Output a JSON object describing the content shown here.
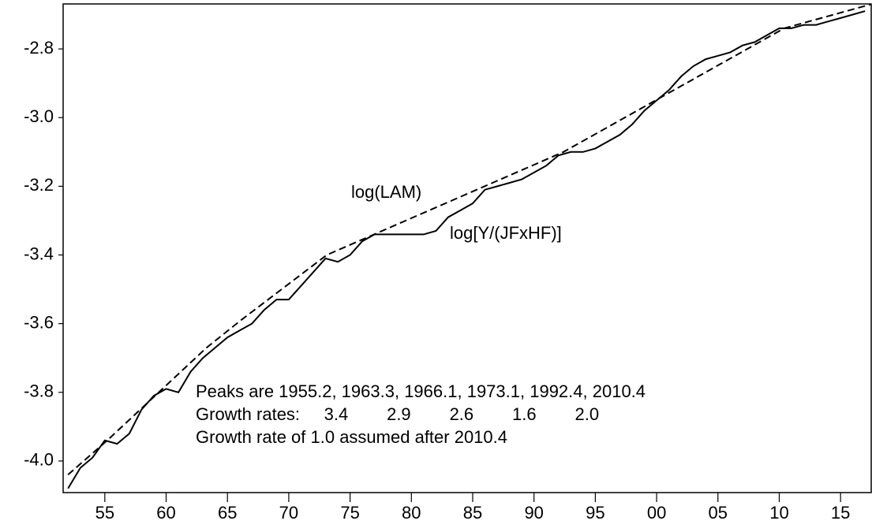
{
  "chart_data": {
    "type": "line",
    "xlim": [
      1951.6,
      2017.5
    ],
    "ylim": [
      -4.092,
      -2.669
    ],
    "xticks": [
      {
        "value": 1955,
        "label": "55"
      },
      {
        "value": 1960,
        "label": "60"
      },
      {
        "value": 1965,
        "label": "65"
      },
      {
        "value": 1970,
        "label": "70"
      },
      {
        "value": 1975,
        "label": "75"
      },
      {
        "value": 1980,
        "label": "80"
      },
      {
        "value": 1985,
        "label": "85"
      },
      {
        "value": 1990,
        "label": "90"
      },
      {
        "value": 1995,
        "label": "95"
      },
      {
        "value": 2000,
        "label": "00"
      },
      {
        "value": 2005,
        "label": "05"
      },
      {
        "value": 2010,
        "label": "10"
      },
      {
        "value": 2015,
        "label": "15"
      }
    ],
    "yticks": [
      -2.8,
      {
        "value": -3,
        "label": "-3.0"
      },
      -3.2,
      -3.4,
      -3.6,
      -3.8,
      {
        "value": -4,
        "label": "-4.0"
      }
    ],
    "series": [
      {
        "name": "log(LAM)",
        "color": "#000000",
        "dash": true,
        "x": [
          1952,
          1955.2,
          1963.3,
          1966.1,
          1973.1,
          1992.4,
          2010.4,
          2017.5
        ],
        "values": [
          -4.04,
          -3.94,
          -3.67,
          -3.59,
          -3.4,
          -3.1,
          -2.74,
          -2.67
        ]
      },
      {
        "name": "log[Y/(JFxHF)]",
        "color": "#000000",
        "dash": false,
        "x": [
          1952,
          1953,
          1954,
          1955,
          1956,
          1957,
          1958,
          1959,
          1960,
          1961,
          1962,
          1963,
          1964,
          1965,
          1966,
          1967,
          1968,
          1969,
          1970,
          1971,
          1972,
          1973,
          1974,
          1975,
          1976,
          1977,
          1978,
          1979,
          1980,
          1981,
          1982,
          1983,
          1984,
          1985,
          1986,
          1987,
          1988,
          1989,
          1990,
          1991,
          1992,
          1993,
          1994,
          1995,
          1996,
          1997,
          1998,
          1999,
          2000,
          2001,
          2002,
          2003,
          2004,
          2005,
          2006,
          2007,
          2008,
          2009,
          2010,
          2011,
          2012,
          2013,
          2014,
          2015,
          2016,
          2017
        ],
        "values": [
          -4.08,
          -4.02,
          -3.99,
          -3.94,
          -3.95,
          -3.92,
          -3.85,
          -3.81,
          -3.79,
          -3.8,
          -3.74,
          -3.7,
          -3.67,
          -3.64,
          -3.62,
          -3.6,
          -3.56,
          -3.53,
          -3.53,
          -3.49,
          -3.45,
          -3.41,
          -3.42,
          -3.4,
          -3.36,
          -3.34,
          -3.34,
          -3.34,
          -3.34,
          -3.34,
          -3.33,
          -3.29,
          -3.27,
          -3.25,
          -3.21,
          -3.2,
          -3.19,
          -3.18,
          -3.16,
          -3.14,
          -3.11,
          -3.1,
          -3.1,
          -3.09,
          -3.07,
          -3.05,
          -3.02,
          -2.98,
          -2.95,
          -2.92,
          -2.88,
          -2.85,
          -2.83,
          -2.82,
          -2.81,
          -2.79,
          -2.78,
          -2.76,
          -2.74,
          -2.74,
          -2.73,
          -2.73,
          -2.72,
          -2.71,
          -2.7,
          -2.69
        ]
      }
    ],
    "annotations": [
      "Peaks are 1955.2, 1963.3, 1966.1, 1973.1, 1992.4, 2010.4",
      "Growth rates:     3.4        2.9        2.6        1.6        2.0",
      "Growth rate of 1.0 assumed after 2010.4"
    ]
  }
}
